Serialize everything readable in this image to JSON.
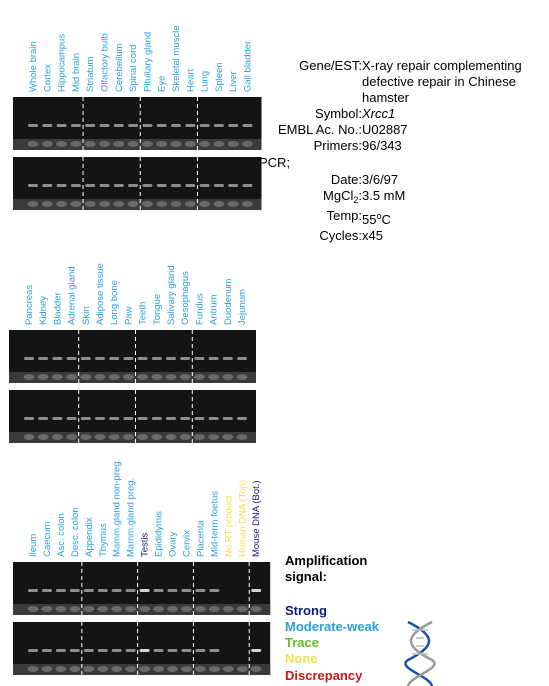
{
  "panels": [
    {
      "lanes": [
        {
          "label": "Whole brain",
          "color": "#2aa0d8"
        },
        {
          "label": "Cortex",
          "color": "#2aa0d8"
        },
        {
          "label": "Hippocampus",
          "color": "#2aa0d8"
        },
        {
          "label": "Mid brain",
          "color": "#2aa0d8"
        },
        {
          "label": "Striatum",
          "color": "#2aa0d8"
        },
        {
          "label": "Olfactory bulb",
          "color": "#2aa0d8"
        },
        {
          "label": "Cerebellum",
          "color": "#2aa0d8"
        },
        {
          "label": "Spinal cord",
          "color": "#2aa0d8"
        },
        {
          "label": "Pituitary gland",
          "color": "#2aa0d8"
        },
        {
          "label": "Eye",
          "color": "#2aa0d8"
        },
        {
          "label": "Skeletal muscle",
          "color": "#2aa0d8"
        },
        {
          "label": "Heart",
          "color": "#2aa0d8"
        },
        {
          "label": "Lung",
          "color": "#2aa0d8"
        },
        {
          "label": "Spleen",
          "color": "#2aa0d8"
        },
        {
          "label": "Liver",
          "color": "#2aa0d8"
        },
        {
          "label": "Gall bladder",
          "color": "#2aa0d8"
        }
      ]
    },
    {
      "lanes": [
        {
          "label": "Pancreas",
          "color": "#2aa0d8"
        },
        {
          "label": "Kidney",
          "color": "#2aa0d8"
        },
        {
          "label": "Bladder",
          "color": "#2aa0d8"
        },
        {
          "label": "Adrenal gland",
          "color": "#2aa0d8"
        },
        {
          "label": "Skin",
          "color": "#2aa0d8"
        },
        {
          "label": "Adipose tissue",
          "color": "#2aa0d8"
        },
        {
          "label": "Long bone",
          "color": "#2aa0d8"
        },
        {
          "label": "Paw",
          "color": "#2aa0d8"
        },
        {
          "label": "Teeth",
          "color": "#2aa0d8"
        },
        {
          "label": "Tongue",
          "color": "#2aa0d8"
        },
        {
          "label": "Salivary gland",
          "color": "#2aa0d8"
        },
        {
          "label": "Oesophagus",
          "color": "#2aa0d8"
        },
        {
          "label": "Fundus",
          "color": "#2aa0d8"
        },
        {
          "label": "Antrum",
          "color": "#2aa0d8"
        },
        {
          "label": "Duodenum",
          "color": "#2aa0d8"
        },
        {
          "label": "Jejunum",
          "color": "#2aa0d8"
        }
      ]
    },
    {
      "lanes": [
        {
          "label": "Ileum",
          "color": "#2aa0d8"
        },
        {
          "label": "Caecum",
          "color": "#2aa0d8"
        },
        {
          "label": "Asc. colon",
          "color": "#2aa0d8"
        },
        {
          "label": "Desc. colon",
          "color": "#2aa0d8"
        },
        {
          "label": "Appendix",
          "color": "#2aa0d8"
        },
        {
          "label": "Thymus",
          "color": "#2aa0d8"
        },
        {
          "label": "Mamm.gland non-preg.",
          "color": "#2aa0d8"
        },
        {
          "label": "Mamm.gland preg.",
          "color": "#2aa0d8"
        },
        {
          "label": "Testis",
          "color": "#101a78"
        },
        {
          "label": "Epididymis",
          "color": "#2aa0d8"
        },
        {
          "label": "Ovary",
          "color": "#2aa0d8"
        },
        {
          "label": "Cervix",
          "color": "#2aa0d8"
        },
        {
          "label": "Placenta",
          "color": "#2aa0d8"
        },
        {
          "label": "Mid-term foetus",
          "color": "#2aa0d8"
        },
        {
          "label": "No RT product",
          "color": "#f5e04a"
        },
        {
          "label": "Human DNA (Top)",
          "color": "#f5e04a"
        },
        {
          "label": "Mouse DNA (Bot.)",
          "color": "#101a78"
        }
      ]
    }
  ],
  "gene_info": {
    "rows": [
      {
        "label": [
          {
            "text": "Gene/EST:"
          }
        ],
        "value": [
          {
            "text": "X-ray repair complementing defective repair in Chinese hamster"
          }
        ]
      },
      {
        "label": [
          {
            "text": "Symbol:"
          }
        ],
        "value": [
          {
            "text": "Xrcc1",
            "style": "italic"
          }
        ]
      },
      {
        "label": [
          {
            "text": "EMBL Ac. No.:"
          }
        ],
        "value": [
          {
            "text": "U02887"
          }
        ]
      },
      {
        "label": [
          {
            "text": "Primers:"
          }
        ],
        "value": [
          {
            "text": "96/343"
          }
        ]
      },
      {
        "heading": "PCR;"
      },
      {
        "label": [
          {
            "text": "Date:"
          }
        ],
        "value": [
          {
            "text": "3/6/97"
          }
        ]
      },
      {
        "label": [
          {
            "text": "MgCl"
          },
          {
            "text": "2",
            "style": "sub"
          },
          {
            "text": ":"
          }
        ],
        "value": [
          {
            "text": "3.5 mM"
          }
        ]
      },
      {
        "label": [
          {
            "text": "Temp:"
          }
        ],
        "value": [
          {
            "text": "55"
          },
          {
            "text": "o",
            "style": "sup"
          },
          {
            "text": "C"
          }
        ]
      },
      {
        "label": [
          {
            "text": "Cycles:"
          }
        ],
        "value": [
          {
            "text": "x45"
          }
        ]
      }
    ]
  },
  "legend": {
    "title": "Amplification signal:",
    "entries": [
      {
        "label": "Strong",
        "color": "#101a78"
      },
      {
        "label": "Moderate-weak",
        "color": "#2aa0d8"
      },
      {
        "label": "Trace",
        "color": "#5cc02a"
      },
      {
        "label": "None",
        "color": "#f5e04a"
      },
      {
        "label": "Discrepancy",
        "color": "#c81818"
      }
    ]
  }
}
